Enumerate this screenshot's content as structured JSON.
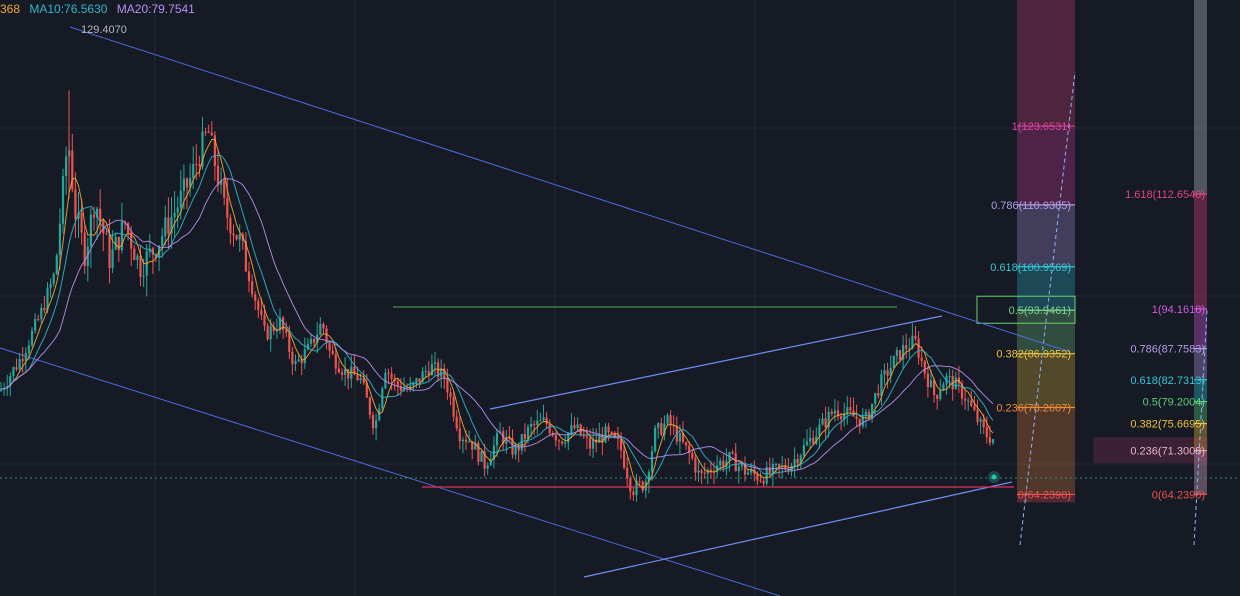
{
  "legend": {
    "ma5": "368",
    "ma10": "MA10:76.5630",
    "ma20": "MA20:79.7541",
    "ma5_color": "#f0a733",
    "ma10_color": "#2fb6c9",
    "ma20_color": "#b58ff0"
  },
  "chart_data": {
    "type": "candlestick",
    "price_range": [
      58,
      135
    ],
    "grid": true,
    "high_marker": "129.4070",
    "colors": {
      "up": "#26a69a",
      "down": "#ef5350",
      "background": "#161a25",
      "grid": "#232834",
      "trend": "#4f6bd6"
    },
    "path_anchors": [
      [
        0,
        81
      ],
      [
        20,
        86
      ],
      [
        40,
        93
      ],
      [
        55,
        100
      ],
      [
        68,
        122
      ],
      [
        75,
        110
      ],
      [
        85,
        103
      ],
      [
        95,
        112
      ],
      [
        110,
        102
      ],
      [
        125,
        108
      ],
      [
        140,
        101
      ],
      [
        155,
        104
      ],
      [
        175,
        110
      ],
      [
        190,
        115
      ],
      [
        208,
        123
      ],
      [
        225,
        110
      ],
      [
        240,
        105
      ],
      [
        255,
        96
      ],
      [
        265,
        90
      ],
      [
        280,
        92
      ],
      [
        295,
        85
      ],
      [
        310,
        88
      ],
      [
        322,
        92
      ],
      [
        330,
        87
      ],
      [
        345,
        84
      ],
      [
        360,
        83
      ],
      [
        375,
        75
      ],
      [
        385,
        85
      ],
      [
        395,
        82
      ],
      [
        410,
        81
      ],
      [
        430,
        85
      ],
      [
        445,
        83
      ],
      [
        460,
        74
      ],
      [
        470,
        73
      ],
      [
        485,
        69
      ],
      [
        500,
        74
      ],
      [
        515,
        71
      ],
      [
        530,
        75
      ],
      [
        545,
        76
      ],
      [
        560,
        73
      ],
      [
        575,
        75
      ],
      [
        590,
        72
      ],
      [
        605,
        74
      ],
      [
        620,
        72
      ],
      [
        632,
        65
      ],
      [
        645,
        66
      ],
      [
        655,
        74
      ],
      [
        668,
        76
      ],
      [
        680,
        73
      ],
      [
        692,
        70
      ],
      [
        700,
        67
      ],
      [
        715,
        69
      ],
      [
        730,
        70
      ],
      [
        745,
        68
      ],
      [
        760,
        67
      ],
      [
        775,
        68
      ],
      [
        790,
        69
      ],
      [
        805,
        72
      ],
      [
        820,
        75
      ],
      [
        835,
        78
      ],
      [
        850,
        77
      ],
      [
        865,
        76
      ],
      [
        880,
        82
      ],
      [
        895,
        86
      ],
      [
        905,
        88
      ],
      [
        915,
        89
      ],
      [
        925,
        84
      ],
      [
        935,
        80
      ],
      [
        945,
        83
      ],
      [
        955,
        82
      ],
      [
        965,
        80
      ],
      [
        975,
        77
      ],
      [
        985,
        74
      ],
      [
        995,
        73
      ]
    ],
    "fib_a": {
      "levels": [
        {
          "ratio": "1",
          "label": "1(123.6531)",
          "price": 123.6531,
          "color": "#e040a0"
        },
        {
          "ratio": "0.786",
          "label": "0.786(110.9385)",
          "price": 110.9385,
          "color": "#b59ce6"
        },
        {
          "ratio": "0.618",
          "label": "0.618(100.9569)",
          "price": 100.9569,
          "color": "#33c7d6"
        },
        {
          "ratio": "0.5",
          "label": "0.5(93.9461)",
          "price": 93.9461,
          "color": "#7bd389"
        },
        {
          "ratio": "0.382",
          "label": "0.382(86.9352)",
          "price": 86.9352,
          "color": "#f0c23a"
        },
        {
          "ratio": "0.236",
          "label": "0.236(78.2607)",
          "price": 78.2607,
          "color": "#f08a3a"
        },
        {
          "ratio": "0",
          "label": "0(64.2390)",
          "price": 64.239,
          "color": "#ef5350"
        }
      ]
    },
    "fib_b": {
      "levels": [
        {
          "ratio": "1.618",
          "label": "1.618(112.6540)",
          "price": 112.654,
          "color": "#e0457a"
        },
        {
          "ratio": "1",
          "label": "1(94.1618)",
          "price": 94.1618,
          "color": "#d05ce0"
        },
        {
          "ratio": "0.786",
          "label": "0.786(87.7583)",
          "price": 87.7583,
          "color": "#b59ce6"
        },
        {
          "ratio": "0.618",
          "label": "0.618(82.7313)",
          "price": 82.7313,
          "color": "#33c7d6"
        },
        {
          "ratio": "0.5",
          "label": "0.5(79.2004)",
          "price": 79.2004,
          "color": "#5ad17a"
        },
        {
          "ratio": "0.382",
          "label": "0.382(75.6695)",
          "price": 75.6695,
          "color": "#f0c23a"
        },
        {
          "ratio": "0.236",
          "label": "0.236(71.3008)",
          "price": 71.3008,
          "color": "#e8b4c8"
        },
        {
          "ratio": "0",
          "label": "0(64.2390)",
          "price": 64.239,
          "color": "#ef5350"
        }
      ]
    }
  }
}
